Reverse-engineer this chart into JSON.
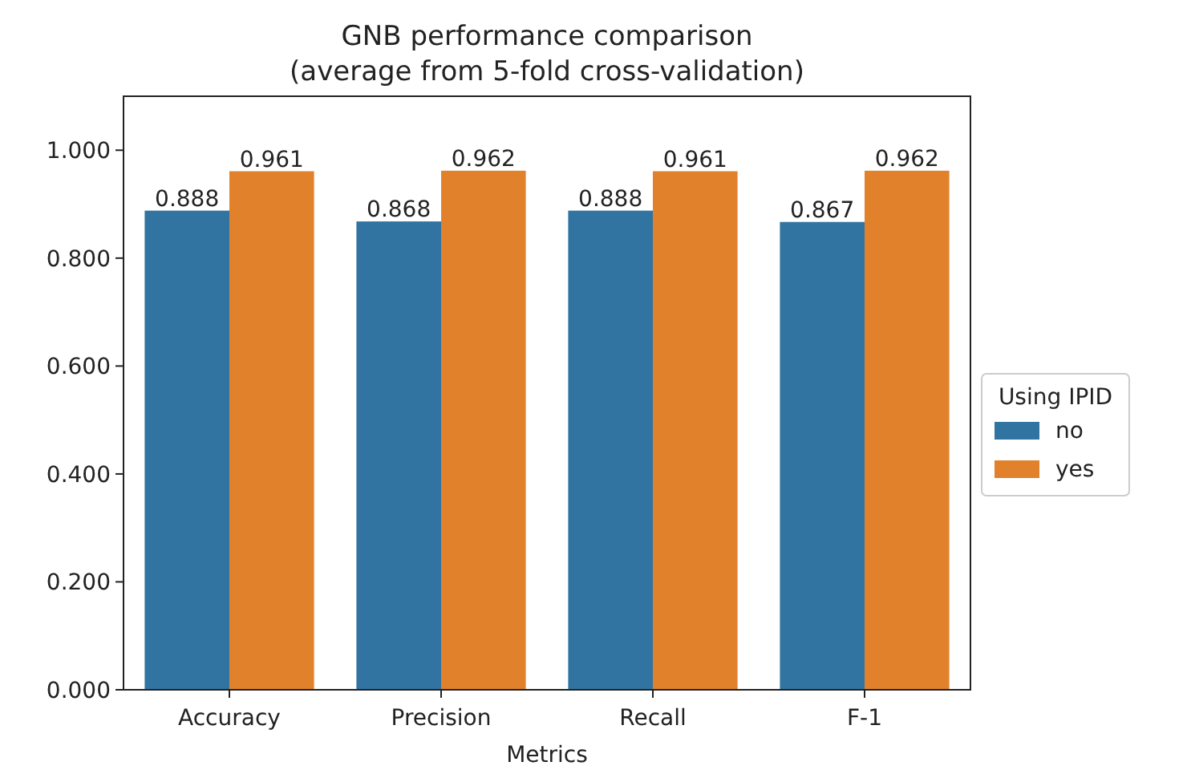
{
  "chart_data": {
    "type": "bar",
    "title": "GNB performance comparison\n(average from 5-fold cross-validation)",
    "xlabel": "Metrics",
    "legend_title": "Using IPID",
    "categories": [
      "Accuracy",
      "Precision",
      "Recall",
      "F-1"
    ],
    "series": [
      {
        "name": "no",
        "color": "#3274a1",
        "values": [
          0.888,
          0.868,
          0.888,
          0.867
        ]
      },
      {
        "name": "yes",
        "color": "#e1812c",
        "values": [
          0.961,
          0.962,
          0.961,
          0.962
        ]
      }
    ],
    "ylim": [
      0,
      1.1
    ],
    "yticks": [
      {
        "value": 0,
        "label": "0.000"
      },
      {
        "value": 0.2,
        "label": "0.200"
      },
      {
        "value": 0.4,
        "label": "0.400"
      },
      {
        "value": 0.6,
        "label": "0.600"
      },
      {
        "value": 0.8,
        "label": "0.800"
      },
      {
        "value": 1,
        "label": "1.000"
      }
    ],
    "data_labels": true,
    "legend": "right",
    "grid": false
  }
}
